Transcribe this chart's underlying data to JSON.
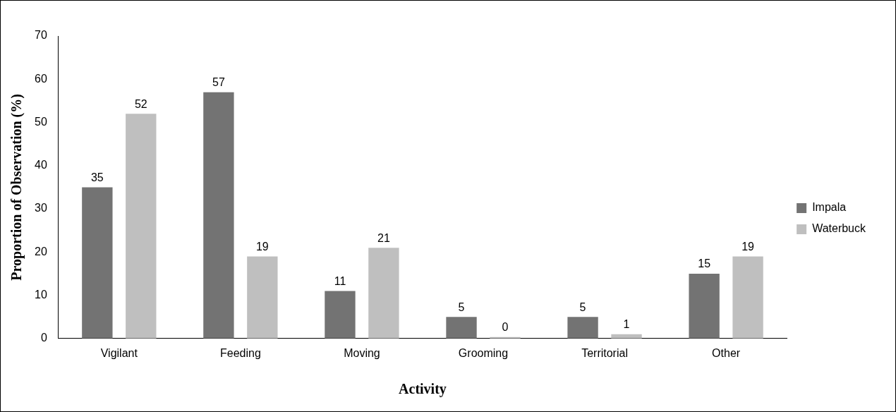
{
  "chart_data": {
    "type": "bar",
    "xlabel": "Activity",
    "ylabel": "Proportion of Observation (%)",
    "categories": [
      "Vigilant",
      "Feeding",
      "Moving",
      "Grooming",
      "Territorial",
      "Other"
    ],
    "series": [
      {
        "name": "Impala",
        "color": "#737373",
        "values": [
          35,
          57,
          11,
          5,
          5,
          15
        ]
      },
      {
        "name": "Waterbuck",
        "color": "#bfbfbf",
        "values": [
          52,
          19,
          21,
          0,
          1,
          19
        ]
      }
    ],
    "ylim": [
      0,
      70
    ],
    "yticks": [
      0,
      10,
      20,
      30,
      40,
      50,
      60,
      70
    ],
    "grid": false,
    "legend": "right",
    "data_labels": true
  }
}
